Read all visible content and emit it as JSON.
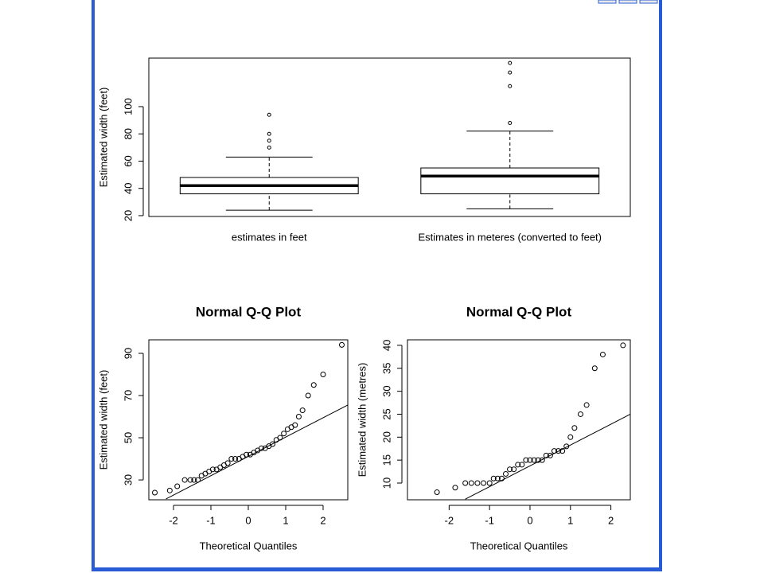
{
  "chart_data": [
    {
      "type": "box",
      "ylabel": "Estimated width (feet)",
      "categories": [
        "estimates in feet",
        "Estimates in meteres (converted to feet)"
      ],
      "whisker_low": [
        24,
        25
      ],
      "q1": [
        36,
        36
      ],
      "median": [
        42,
        49
      ],
      "q3": [
        48,
        55
      ],
      "whisker_high": [
        63,
        82
      ],
      "outliers": [
        [
          70,
          75,
          80,
          94
        ],
        [
          88,
          115,
          125,
          132
        ]
      ],
      "ylim": [
        19.4,
        135.6
      ],
      "yticks": [
        20,
        40,
        60,
        80,
        100
      ]
    },
    {
      "type": "scatter",
      "title": "Normal Q-Q Plot",
      "xlabel": "Theoretical Quantiles",
      "ylabel": "Estimated width (feet)",
      "x": [
        -2.5,
        -2.1,
        -1.9,
        -1.7,
        -1.55,
        -1.45,
        -1.35,
        -1.25,
        -1.15,
        -1.05,
        -0.95,
        -0.85,
        -0.75,
        -0.65,
        -0.55,
        -0.45,
        -0.35,
        -0.25,
        -0.15,
        -0.05,
        0.05,
        0.15,
        0.25,
        0.35,
        0.45,
        0.55,
        0.65,
        0.75,
        0.85,
        0.95,
        1.05,
        1.15,
        1.25,
        1.35,
        1.45,
        1.6,
        1.75,
        2.0,
        2.5
      ],
      "values": [
        24,
        25,
        27,
        30,
        30,
        30,
        30,
        32,
        33,
        34,
        35,
        35,
        36,
        37,
        38,
        40,
        40,
        40,
        41,
        42,
        42,
        43,
        44,
        45,
        45,
        46,
        47,
        49,
        50,
        52,
        54,
        55,
        56,
        60,
        63,
        70,
        75,
        80,
        94
      ],
      "line": {
        "x": [
          -2.2,
          2.66
        ],
        "y": [
          21,
          65.5
        ]
      },
      "xlim": [
        -2.66,
        2.66
      ],
      "xticks": [
        -2,
        -1,
        0,
        1,
        2
      ],
      "ylim": [
        20.6,
        96.4
      ],
      "yticks": [
        30,
        50,
        70,
        90
      ]
    },
    {
      "type": "scatter",
      "title": "Normal Q-Q Plot",
      "xlabel": "Theoretical Quantiles",
      "ylabel": "Estimated width (metres)",
      "x": [
        -2.3,
        -1.85,
        -1.6,
        -1.45,
        -1.3,
        -1.15,
        -1.0,
        -0.9,
        -0.8,
        -0.7,
        -0.6,
        -0.5,
        -0.4,
        -0.3,
        -0.2,
        -0.1,
        0,
        0.1,
        0.2,
        0.3,
        0.4,
        0.5,
        0.6,
        0.7,
        0.8,
        0.9,
        1.0,
        1.1,
        1.25,
        1.4,
        1.6,
        1.8,
        2.3
      ],
      "values": [
        8,
        9,
        10,
        10,
        10,
        10,
        10,
        11,
        11,
        11,
        12,
        13,
        13,
        14,
        14,
        15,
        15,
        15,
        15,
        15,
        16,
        16,
        17,
        17,
        17,
        18,
        20,
        22,
        25,
        27,
        35,
        38,
        40
      ],
      "line": {
        "x": [
          -1.6,
          2.48
        ],
        "y": [
          6.5,
          25
        ]
      },
      "xlim": [
        -3.03,
        2.48
      ],
      "xticks": [
        -2,
        -1,
        0,
        1,
        2
      ],
      "ylim": [
        6.36,
        41.2
      ],
      "yticks": [
        10,
        15,
        20,
        25,
        30,
        35,
        40
      ]
    }
  ]
}
